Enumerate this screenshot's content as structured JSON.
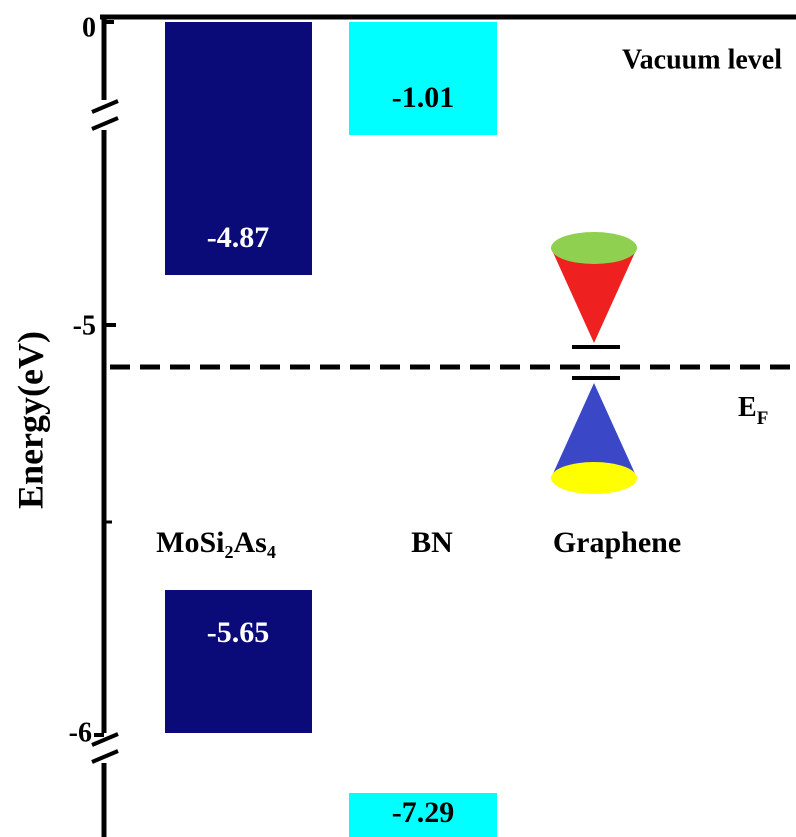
{
  "axis": {
    "label": "Energy(eV)",
    "ticks": [
      "0",
      "-5",
      "-6"
    ]
  },
  "vacuum_level": "Vacuum level",
  "fermi_level": {
    "base": "E",
    "sub": "F"
  },
  "materials": [
    {
      "name": "MoSi₂As₄",
      "upper": "-4.87",
      "lower": "-5.65"
    },
    {
      "name": "BN",
      "upper": "-1.01",
      "lower": "-7.29"
    },
    {
      "name": "Graphene"
    }
  ]
}
